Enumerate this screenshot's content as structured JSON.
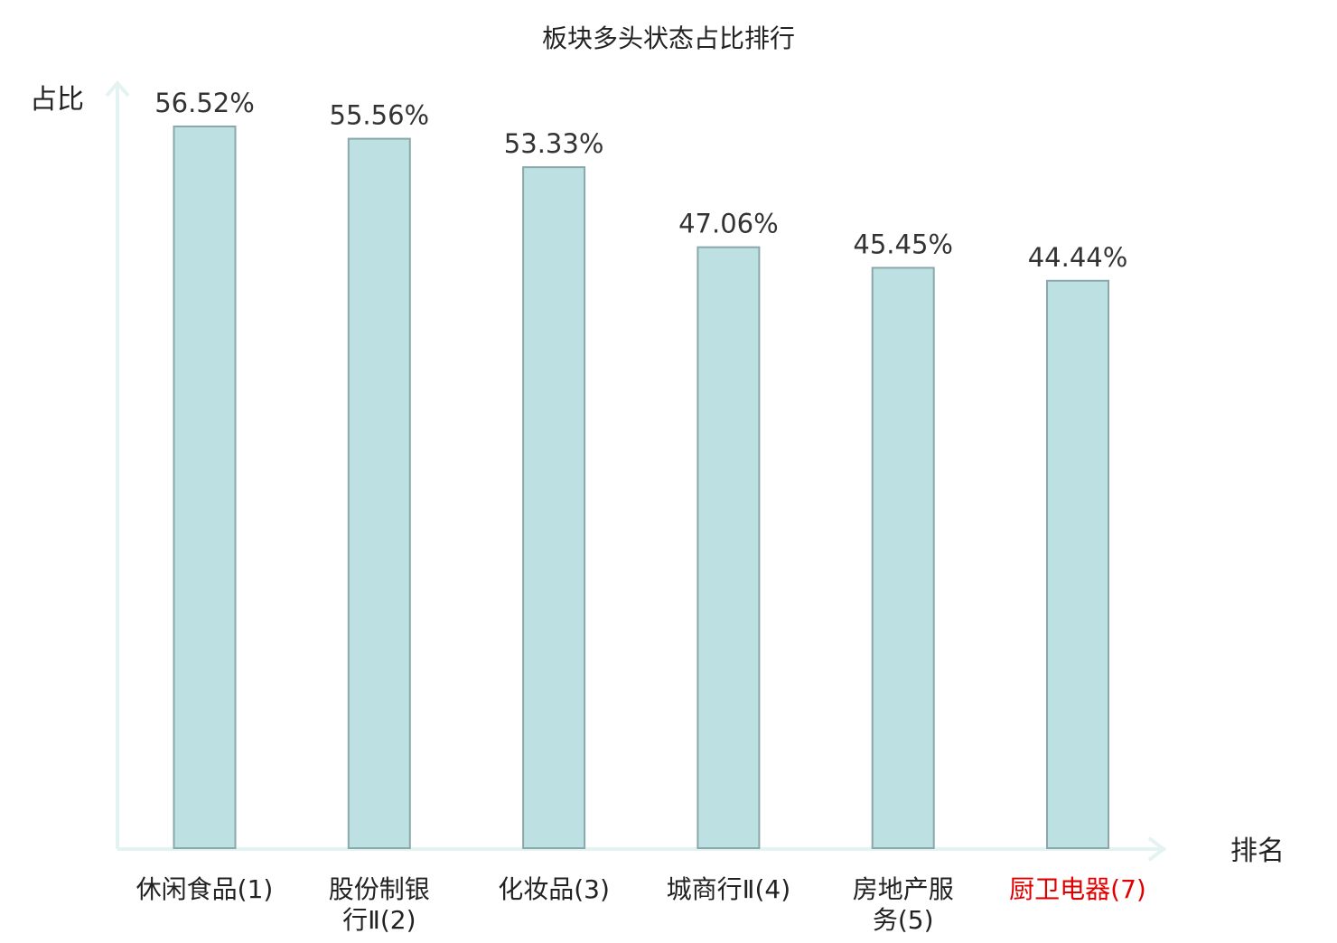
{
  "chart_data": {
    "type": "bar",
    "title": "板块多头状态占比排行",
    "ylabel": "占比",
    "xlabel": "排名",
    "categories": [
      [
        "休闲食品(1)"
      ],
      [
        "股份制银",
        "行Ⅱ(2)"
      ],
      [
        "化妆品(3)"
      ],
      [
        "城商行Ⅱ(4)"
      ],
      [
        "房地产服",
        "务(5)"
      ],
      [
        "厨卫电器(7)"
      ]
    ],
    "values": [
      56.52,
      55.56,
      53.33,
      47.06,
      45.45,
      44.44
    ],
    "value_labels": [
      "56.52%",
      "55.56%",
      "53.33%",
      "47.06%",
      "45.45%",
      "44.44%"
    ],
    "highlight_index": 5,
    "ylim": [
      0,
      56.52
    ],
    "grid": false,
    "legend": "none",
    "colors": {
      "bar_fill": "#bde0e2",
      "bar_stroke": "#8aa8aa",
      "axis": "#e3f3f1",
      "text": "#222222",
      "value_text": "#333333",
      "highlight_text": "#e00000"
    }
  }
}
